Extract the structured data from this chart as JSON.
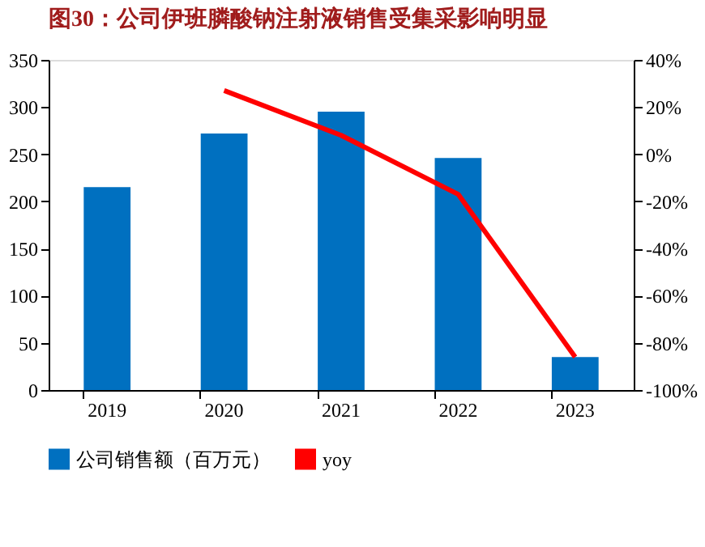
{
  "chart_data": {
    "type": "bar",
    "title": "图30：公司伊班膦酸钠注射液销售受集采影响明显",
    "categories": [
      "2019",
      "2020",
      "2021",
      "2022",
      "2023"
    ],
    "series": [
      {
        "name": "公司销售额（百万元）",
        "color": "#0070c0",
        "values": [
          215,
          272,
          295,
          246,
          35
        ]
      },
      {
        "name": "yoy",
        "color": "#ff0000",
        "type": "line",
        "axis": "y2",
        "values": [
          null,
          27,
          8,
          -17,
          -86
        ]
      }
    ],
    "ylim": [
      0,
      350
    ],
    "yticks": [
      0,
      50,
      100,
      150,
      200,
      250,
      300,
      350
    ],
    "y2lim": [
      -100,
      40
    ],
    "y2ticks": [
      {
        "value": -100,
        "label": "-100%"
      },
      {
        "value": -80,
        "label": "-80%"
      },
      {
        "value": -60,
        "label": "-60%"
      },
      {
        "value": -40,
        "label": "-40%"
      },
      {
        "value": -20,
        "label": "-20%"
      },
      {
        "value": 0,
        "label": "0%"
      },
      {
        "value": 20,
        "label": "20%"
      },
      {
        "value": 40,
        "label": "40%"
      }
    ],
    "legend": "bottom",
    "grid": false
  }
}
